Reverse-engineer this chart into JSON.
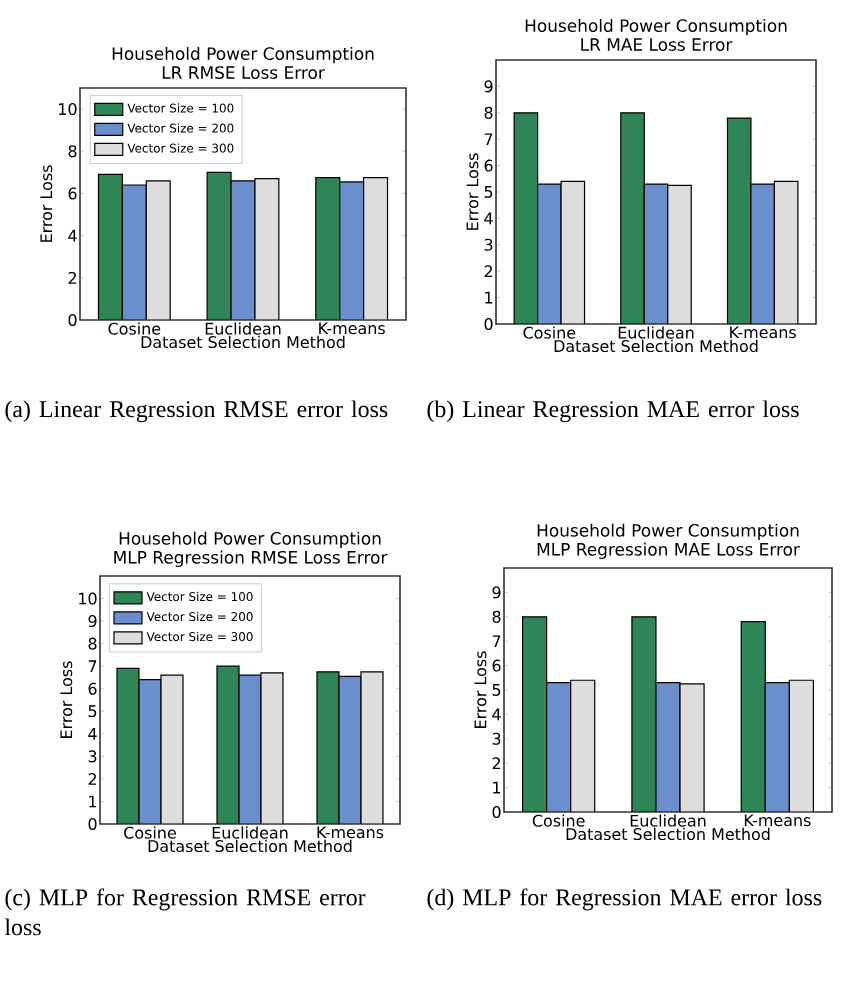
{
  "chart_data": [
    {
      "type": "bar",
      "title": "Household Power Consumption",
      "subtitle": "LR RMSE Loss Error",
      "xlabel": "Dataset Selection Method",
      "ylabel": "Error Loss",
      "categories": [
        "Cosine",
        "Euclidean",
        "K-means"
      ],
      "series": [
        {
          "name": "Vector Size = 100",
          "color": "#2e8555",
          "values": [
            6.9,
            7.0,
            6.75
          ]
        },
        {
          "name": "Vector Size = 200",
          "color": "#6a8fcc",
          "values": [
            6.4,
            6.6,
            6.55
          ]
        },
        {
          "name": "Vector Size = 300",
          "color": "#dddddd",
          "values": [
            6.6,
            6.7,
            6.75
          ]
        }
      ],
      "ylim": [
        0,
        11
      ],
      "yticks": [
        0,
        2,
        4,
        6,
        8,
        10
      ],
      "legend": "top left",
      "annotations": [
        "(a) Linear Regression RMSE error loss"
      ]
    },
    {
      "type": "bar",
      "title": "Household Power Consumption",
      "subtitle": "LR MAE Loss Error",
      "xlabel": "Dataset Selection Method",
      "ylabel": "Error Loss",
      "categories": [
        "Cosine",
        "Euclidean",
        "K-means"
      ],
      "series": [
        {
          "color": "#2e8555",
          "values": [
            8.0,
            8.0,
            7.8
          ]
        },
        {
          "color": "#6a8fcc",
          "values": [
            5.3,
            5.3,
            5.3
          ]
        },
        {
          "color": "#dddddd",
          "values": [
            5.4,
            5.25,
            5.4
          ]
        }
      ],
      "ylim": [
        0,
        10
      ],
      "yticks": [
        0,
        1,
        2,
        3,
        4,
        5,
        6,
        7,
        8,
        9
      ],
      "annotations": [
        "(b) Linear Regression MAE error loss"
      ]
    },
    {
      "type": "bar",
      "title": "Household Power Consumption",
      "subtitle": "MLP Regression RMSE Loss Error",
      "xlabel": "Dataset Selection Method",
      "ylabel": "Error Loss",
      "categories": [
        "Cosine",
        "Euclidean",
        "K-means"
      ],
      "series": [
        {
          "name": "Vector Size = 100",
          "color": "#2e8555",
          "values": [
            6.9,
            7.0,
            6.75
          ]
        },
        {
          "name": "Vector Size = 200",
          "color": "#6a8fcc",
          "values": [
            6.4,
            6.6,
            6.55
          ]
        },
        {
          "name": "Vector Size = 300",
          "color": "#dddddd",
          "values": [
            6.6,
            6.7,
            6.75
          ]
        }
      ],
      "ylim": [
        0,
        11
      ],
      "yticks": [
        0,
        1,
        2,
        3,
        4,
        5,
        6,
        7,
        8,
        9,
        10
      ],
      "legend": "top left",
      "annotations": [
        "(c) MLP for Regression RMSE error loss"
      ]
    },
    {
      "type": "bar",
      "title": "Household Power Consumption",
      "subtitle": "MLP Regression MAE Loss Error",
      "xlabel": "Dataset Selection Method",
      "ylabel": "Error Loss",
      "categories": [
        "Cosine",
        "Euclidean",
        "K-means"
      ],
      "series": [
        {
          "color": "#2e8555",
          "values": [
            8.0,
            8.0,
            7.8
          ]
        },
        {
          "color": "#6a8fcc",
          "values": [
            5.3,
            5.3,
            5.3
          ]
        },
        {
          "color": "#dddddd",
          "values": [
            5.4,
            5.25,
            5.4
          ]
        }
      ],
      "ylim": [
        0,
        10
      ],
      "yticks": [
        0,
        1,
        2,
        3,
        4,
        5,
        6,
        7,
        8,
        9
      ],
      "annotations": [
        "(d) MLP for Regression MAE error loss"
      ]
    }
  ]
}
